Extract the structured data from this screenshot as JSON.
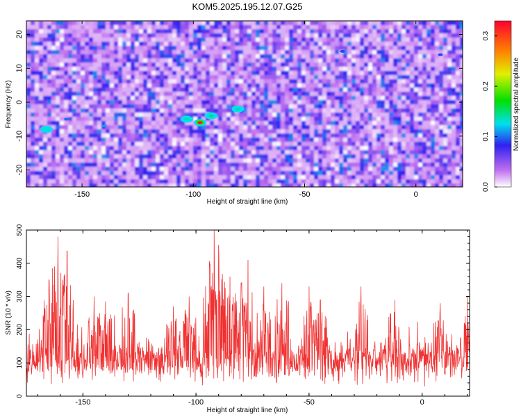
{
  "figure": {
    "title": "KOM5.2025.195.12.07.G25"
  },
  "chart_data": [
    {
      "type": "heatmap",
      "xlabel": "Height of straight line (km)",
      "ylabel": "Frequency (Hz)",
      "xlim": [
        -175,
        21
      ],
      "ylim": [
        -25,
        24
      ],
      "xticks": [
        -150,
        -100,
        -50,
        0
      ],
      "yticks": [
        -20,
        -10,
        0,
        10,
        20
      ],
      "colorbar": {
        "label": "Normalized spectral amplitude",
        "range": [
          0,
          0.33
        ],
        "ticks": [
          0.0,
          0.1,
          0.2,
          0.3
        ],
        "colormap": "rainbow"
      },
      "hotspots": [
        {
          "x": -97,
          "y": -6,
          "amplitude": 0.32
        },
        {
          "x": -92,
          "y": -4,
          "amplitude": 0.15
        },
        {
          "x": -103,
          "y": -5,
          "amplitude": 0.14
        },
        {
          "x": -80,
          "y": -2,
          "amplitude": 0.14
        },
        {
          "x": -166,
          "y": -8,
          "amplitude": 0.13
        },
        {
          "x": -140,
          "y": -7,
          "amplitude": 0.11
        },
        {
          "x": -157,
          "y": -5,
          "amplitude": 0.1
        },
        {
          "x": -33,
          "y": 15,
          "amplitude": 0.09
        },
        {
          "x": 11,
          "y": 14,
          "amplitude": 0.09
        }
      ],
      "grid": false
    },
    {
      "type": "line",
      "xlabel": "Height of straight line (km)",
      "ylabel": "SNR (10 * v/v)",
      "xlim": [
        -175,
        21
      ],
      "ylim": [
        0,
        500
      ],
      "xticks": [
        -150,
        -100,
        -50,
        0
      ],
      "yticks": [
        0,
        100,
        200,
        300,
        400,
        500
      ],
      "color": "#f03232",
      "baseline": 105,
      "noise_spread": 60,
      "peaks": [
        {
          "x": -161,
          "y": 480
        },
        {
          "x": -157,
          "y": 437
        },
        {
          "x": -165,
          "y": 350
        },
        {
          "x": -145,
          "y": 300
        },
        {
          "x": -140,
          "y": 285
        },
        {
          "x": -130,
          "y": 310
        },
        {
          "x": -110,
          "y": 270
        },
        {
          "x": -103,
          "y": 300
        },
        {
          "x": -94,
          "y": 390
        },
        {
          "x": -92,
          "y": 500
        },
        {
          "x": -90,
          "y": 455
        },
        {
          "x": -85,
          "y": 360
        },
        {
          "x": -80,
          "y": 340
        },
        {
          "x": -77,
          "y": 410
        },
        {
          "x": -70,
          "y": 330
        },
        {
          "x": -62,
          "y": 340
        },
        {
          "x": -50,
          "y": 330
        },
        {
          "x": -45,
          "y": 290
        },
        {
          "x": -27,
          "y": 330
        },
        {
          "x": -12,
          "y": 290
        },
        {
          "x": 8,
          "y": 280
        },
        {
          "x": 20,
          "y": 300
        }
      ],
      "grid": false
    }
  ]
}
